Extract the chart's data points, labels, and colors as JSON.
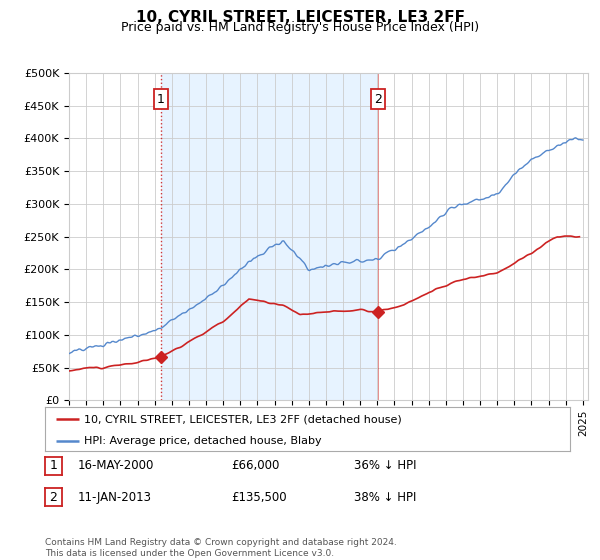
{
  "title": "10, CYRIL STREET, LEICESTER, LE3 2FF",
  "subtitle": "Price paid vs. HM Land Registry's House Price Index (HPI)",
  "ylabel_ticks": [
    "£0",
    "£50K",
    "£100K",
    "£150K",
    "£200K",
    "£250K",
    "£300K",
    "£350K",
    "£400K",
    "£450K",
    "£500K"
  ],
  "ytick_values": [
    0,
    50000,
    100000,
    150000,
    200000,
    250000,
    300000,
    350000,
    400000,
    450000,
    500000
  ],
  "ylim": [
    0,
    500000
  ],
  "xlim_start": 1995.0,
  "xlim_end": 2025.3,
  "hpi_color": "#5588cc",
  "hpi_fill_color": "#ddeeff",
  "price_color": "#cc2222",
  "marker1_x": 2000.37,
  "marker1_y": 66000,
  "marker2_x": 2013.03,
  "marker2_y": 135500,
  "vline1_x": 2000.37,
  "vline2_x": 2013.03,
  "legend_label_price": "10, CYRIL STREET, LEICESTER, LE3 2FF (detached house)",
  "legend_label_hpi": "HPI: Average price, detached house, Blaby",
  "annotation1_label": "1",
  "annotation2_label": "2",
  "table_row1": [
    "1",
    "16-MAY-2000",
    "£66,000",
    "36% ↓ HPI"
  ],
  "table_row2": [
    "2",
    "11-JAN-2013",
    "£135,500",
    "38% ↓ HPI"
  ],
  "footer": "Contains HM Land Registry data © Crown copyright and database right 2024.\nThis data is licensed under the Open Government Licence v3.0.",
  "background_color": "#ffffff",
  "shade_color": "#ddeeff"
}
